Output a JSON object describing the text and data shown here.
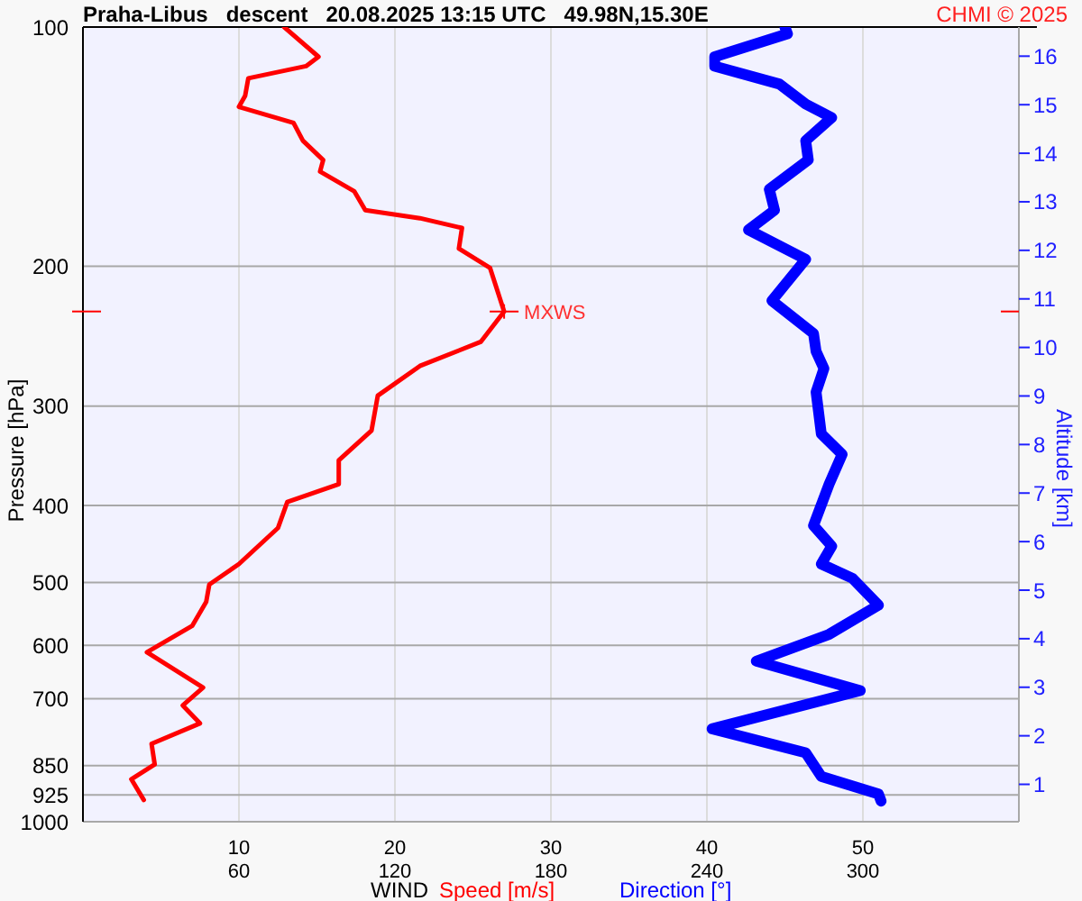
{
  "chart_data": {
    "type": "line",
    "title": "Praha-Libus   descent   20.08.2025 13:15 UTC   49.98N,15.30E",
    "xlabel": "WIND",
    "ylabel": "Pressure [hPa]",
    "y2label": "Altitude [km]",
    "annotations": [
      "CHMI © 2025",
      {
        "text": "MXWS",
        "x": 27,
        "y": 228
      }
    ],
    "xlim": [
      0,
      60
    ],
    "xticks": [
      10,
      20,
      30,
      40,
      50
    ],
    "x2lim": [
      0,
      360
    ],
    "x2ticks": [
      60,
      120,
      180,
      240,
      300
    ],
    "ylim": [
      1000,
      100
    ],
    "yticks": [
      100,
      200,
      300,
      400,
      500,
      600,
      700,
      850,
      925,
      1000
    ],
    "y2lim": [
      0.23,
      16.6
    ],
    "y2ticks": [
      1,
      2,
      3,
      4,
      5,
      6,
      7,
      8,
      9,
      10,
      11,
      12,
      13,
      14,
      15,
      16
    ],
    "log": "y",
    "grid": true,
    "legend": "bottom",
    "marker": "none",
    "line_style": "solid",
    "series": [
      {
        "name": "Speed [m/s]",
        "color": "#ff0000",
        "x": [
          12.9,
          15.1,
          14.3,
          10.6,
          10.4,
          10.0,
          13.5,
          14.1,
          15.4,
          15.2,
          17.4,
          18.1,
          21.6,
          24.3,
          24.1,
          26.1,
          27.0,
          25.5,
          21.6,
          18.9,
          18.5,
          16.4,
          16.4,
          13.1,
          12.5,
          10.0,
          8.1,
          7.9,
          7.0,
          4.1,
          7.7,
          6.4,
          7.5,
          4.4,
          4.6,
          3.1,
          3.9
        ],
        "values": [
          100,
          109,
          112,
          116,
          122,
          126,
          132,
          139,
          147,
          152,
          161,
          170,
          174,
          179,
          190,
          201,
          228,
          249,
          267,
          291,
          322,
          351,
          376,
          396,
          427,
          474,
          503,
          529,
          567,
          612,
          678,
          714,
          752,
          798,
          847,
          884,
          939
        ]
      },
      {
        "name": "Direction [°]",
        "color": "#0000ff",
        "axis": "x2",
        "x": [
          270,
          271,
          243,
          243,
          268,
          278,
          288,
          278,
          279,
          264,
          266,
          256,
          278,
          265,
          281,
          282,
          285,
          282,
          284,
          292,
          287,
          281,
          288,
          284,
          296,
          306,
          287,
          259,
          299,
          242,
          278,
          284,
          306,
          307
        ],
        "values": [
          100,
          102,
          109,
          112,
          118,
          125,
          130,
          139,
          147,
          160,
          170,
          180,
          196,
          221,
          243,
          256,
          269,
          288,
          325,
          345,
          376,
          424,
          450,
          474,
          494,
          534,
          581,
          628,
          684,
          764,
          819,
          877,
          923,
          942
        ]
      }
    ]
  }
}
